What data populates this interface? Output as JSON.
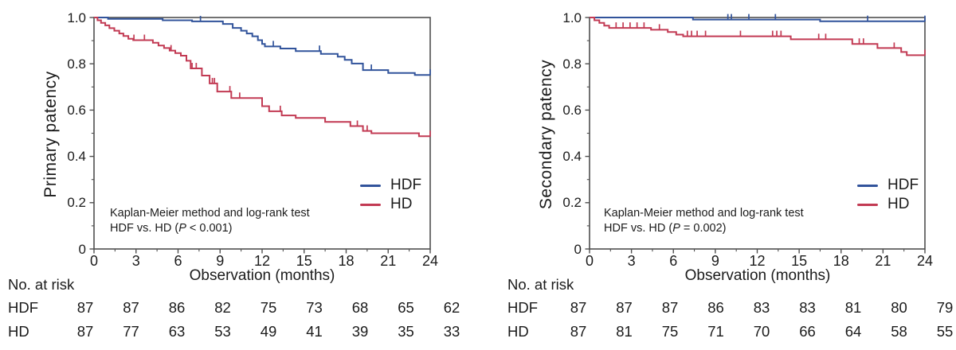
{
  "colors": {
    "hdf": "#31539b",
    "hd": "#c23a53",
    "frame": "#4f4f4f",
    "text": "#1b1b1b",
    "background": "#ffffff"
  },
  "chart_data": [
    {
      "type": "line",
      "subtype": "kaplan-meier-step",
      "title": "",
      "ylabel": "Primary patency",
      "xlabel": "Observation (months)",
      "xlim": [
        0,
        24
      ],
      "ylim": [
        0,
        1.0
      ],
      "xticks": [
        0,
        3,
        6,
        9,
        12,
        15,
        18,
        21,
        24
      ],
      "minor_xticks": [
        1.5,
        4.5,
        7.5,
        10.5,
        13.5,
        16.5,
        19.5,
        22.5
      ],
      "ytick_values": [
        0,
        0.2,
        0.4,
        0.6,
        0.8,
        1.0
      ],
      "ytick_labels": [
        "0",
        "0.2",
        "0.4",
        "0.6",
        "0.8",
        "1.0"
      ],
      "minor_ytick_values": [
        0.1,
        0.3,
        0.5,
        0.7,
        0.9
      ],
      "grid": false,
      "legend_position": "lower right",
      "annotation": {
        "line1": "Kaplan-Meier method and log-rank test",
        "line2_pre": "HDF vs. HD (",
        "line2_italic": "P",
        "line2_post": " < 0.001)"
      },
      "series": [
        {
          "name": "HDF",
          "color": "#31539b",
          "points": [
            [
              0,
              1.0
            ],
            [
              1.0,
              0.994
            ],
            [
              4.9,
              0.988
            ],
            [
              7.0,
              0.983
            ],
            [
              9.2,
              0.972
            ],
            [
              9.9,
              0.955
            ],
            [
              10.5,
              0.943
            ],
            [
              10.9,
              0.931
            ],
            [
              11.3,
              0.919
            ],
            [
              11.7,
              0.902
            ],
            [
              12.0,
              0.886
            ],
            [
              12.2,
              0.875
            ],
            [
              13.3,
              0.866
            ],
            [
              14.4,
              0.855
            ],
            [
              16.2,
              0.843
            ],
            [
              17.4,
              0.831
            ],
            [
              17.9,
              0.817
            ],
            [
              18.4,
              0.801
            ],
            [
              19.2,
              0.773
            ],
            [
              21.0,
              0.76
            ],
            [
              22.9,
              0.752
            ],
            [
              24,
              0.752
            ]
          ],
          "censor_marks": [
            [
              7.6,
              0.983
            ],
            [
              12.8,
              0.875
            ],
            [
              16.1,
              0.855
            ],
            [
              19.8,
              0.773
            ],
            [
              24,
              0.752
            ]
          ]
        },
        {
          "name": "HD",
          "color": "#c23a53",
          "points": [
            [
              0,
              1.0
            ],
            [
              0.25,
              0.988
            ],
            [
              0.5,
              0.977
            ],
            [
              0.8,
              0.966
            ],
            [
              1.1,
              0.954
            ],
            [
              1.45,
              0.943
            ],
            [
              1.8,
              0.931
            ],
            [
              2.1,
              0.92
            ],
            [
              2.45,
              0.908
            ],
            [
              2.8,
              0.902
            ],
            [
              4.2,
              0.891
            ],
            [
              4.6,
              0.879
            ],
            [
              5.0,
              0.868
            ],
            [
              5.4,
              0.857
            ],
            [
              5.8,
              0.846
            ],
            [
              6.2,
              0.835
            ],
            [
              6.6,
              0.813
            ],
            [
              6.9,
              0.78
            ],
            [
              7.7,
              0.749
            ],
            [
              8.25,
              0.715
            ],
            [
              8.8,
              0.68
            ],
            [
              9.8,
              0.652
            ],
            [
              12.0,
              0.617
            ],
            [
              12.5,
              0.595
            ],
            [
              13.4,
              0.577
            ],
            [
              14.4,
              0.566
            ],
            [
              16.5,
              0.549
            ],
            [
              18.3,
              0.531
            ],
            [
              19.2,
              0.51
            ],
            [
              19.8,
              0.5
            ],
            [
              23.2,
              0.487
            ],
            [
              24,
              0.487
            ]
          ],
          "censor_marks": [
            [
              2.85,
              0.902
            ],
            [
              3.6,
              0.902
            ],
            [
              5.5,
              0.857
            ],
            [
              7.0,
              0.78
            ],
            [
              7.3,
              0.78
            ],
            [
              8.45,
              0.715
            ],
            [
              8.6,
              0.715
            ],
            [
              9.7,
              0.68
            ],
            [
              10.4,
              0.652
            ],
            [
              13.3,
              0.595
            ],
            [
              18.8,
              0.531
            ],
            [
              19.5,
              0.51
            ],
            [
              24,
              0.487
            ]
          ]
        }
      ],
      "risk_table": {
        "title": "No. at risk",
        "rows": [
          {
            "label": "HDF",
            "values": [
              87,
              87,
              86,
              82,
              75,
              73,
              68,
              65,
              62
            ]
          },
          {
            "label": "HD",
            "values": [
              87,
              77,
              63,
              53,
              49,
              41,
              39,
              35,
              33
            ]
          }
        ]
      }
    },
    {
      "type": "line",
      "subtype": "kaplan-meier-step",
      "title": "",
      "ylabel": "Secondary patency",
      "xlabel": "Observation (months)",
      "xlim": [
        0,
        24
      ],
      "ylim": [
        0,
        1.0
      ],
      "xticks": [
        0,
        3,
        6,
        9,
        12,
        15,
        18,
        21,
        24
      ],
      "minor_xticks": [
        1.5,
        4.5,
        7.5,
        10.5,
        13.5,
        16.5,
        19.5,
        22.5
      ],
      "ytick_values": [
        0,
        0.2,
        0.4,
        0.6,
        0.8,
        1.0
      ],
      "ytick_labels": [
        "0",
        "0.2",
        "0.4",
        "0.6",
        "0.8",
        "1.0"
      ],
      "minor_ytick_values": [
        0.1,
        0.3,
        0.5,
        0.7,
        0.9
      ],
      "grid": false,
      "legend_position": "lower right",
      "annotation": {
        "line1": "Kaplan-Meier method and log-rank test",
        "line2_pre": "HDF vs. HD (",
        "line2_italic": "P",
        "line2_post": " = 0.002)"
      },
      "series": [
        {
          "name": "HDF",
          "color": "#31539b",
          "points": [
            [
              0,
              1.0
            ],
            [
              7.4,
              0.991
            ],
            [
              16.5,
              0.984
            ],
            [
              24,
              0.984
            ]
          ],
          "censor_marks": [
            [
              9.9,
              0.991
            ],
            [
              10.15,
              0.991
            ],
            [
              11.4,
              0.991
            ],
            [
              13.3,
              0.991
            ],
            [
              19.9,
              0.984
            ],
            [
              24,
              0.984
            ]
          ]
        },
        {
          "name": "HD",
          "color": "#c23a53",
          "points": [
            [
              0,
              1.0
            ],
            [
              0.35,
              0.988
            ],
            [
              0.7,
              0.977
            ],
            [
              1.05,
              0.965
            ],
            [
              1.4,
              0.955
            ],
            [
              4.4,
              0.947
            ],
            [
              5.6,
              0.937
            ],
            [
              6.2,
              0.926
            ],
            [
              6.7,
              0.919
            ],
            [
              14.4,
              0.906
            ],
            [
              18.8,
              0.886
            ],
            [
              20.6,
              0.868
            ],
            [
              22.3,
              0.851
            ],
            [
              22.7,
              0.837
            ],
            [
              24,
              0.837
            ]
          ],
          "censor_marks": [
            [
              1.9,
              0.955
            ],
            [
              2.4,
              0.955
            ],
            [
              2.9,
              0.955
            ],
            [
              3.4,
              0.955
            ],
            [
              3.9,
              0.955
            ],
            [
              5.0,
              0.947
            ],
            [
              7.0,
              0.919
            ],
            [
              7.3,
              0.919
            ],
            [
              7.7,
              0.919
            ],
            [
              8.3,
              0.919
            ],
            [
              10.8,
              0.919
            ],
            [
              13.1,
              0.919
            ],
            [
              13.4,
              0.919
            ],
            [
              13.7,
              0.919
            ],
            [
              16.4,
              0.906
            ],
            [
              16.9,
              0.906
            ],
            [
              19.3,
              0.886
            ],
            [
              19.6,
              0.886
            ],
            [
              21.8,
              0.868
            ],
            [
              24,
              0.837
            ]
          ]
        }
      ],
      "risk_table": {
        "title": "No. at risk",
        "rows": [
          {
            "label": "HDF",
            "values": [
              87,
              87,
              87,
              86,
              83,
              83,
              81,
              80,
              79
            ]
          },
          {
            "label": "HD",
            "values": [
              87,
              81,
              75,
              71,
              70,
              66,
              64,
              58,
              55
            ]
          }
        ]
      }
    }
  ]
}
